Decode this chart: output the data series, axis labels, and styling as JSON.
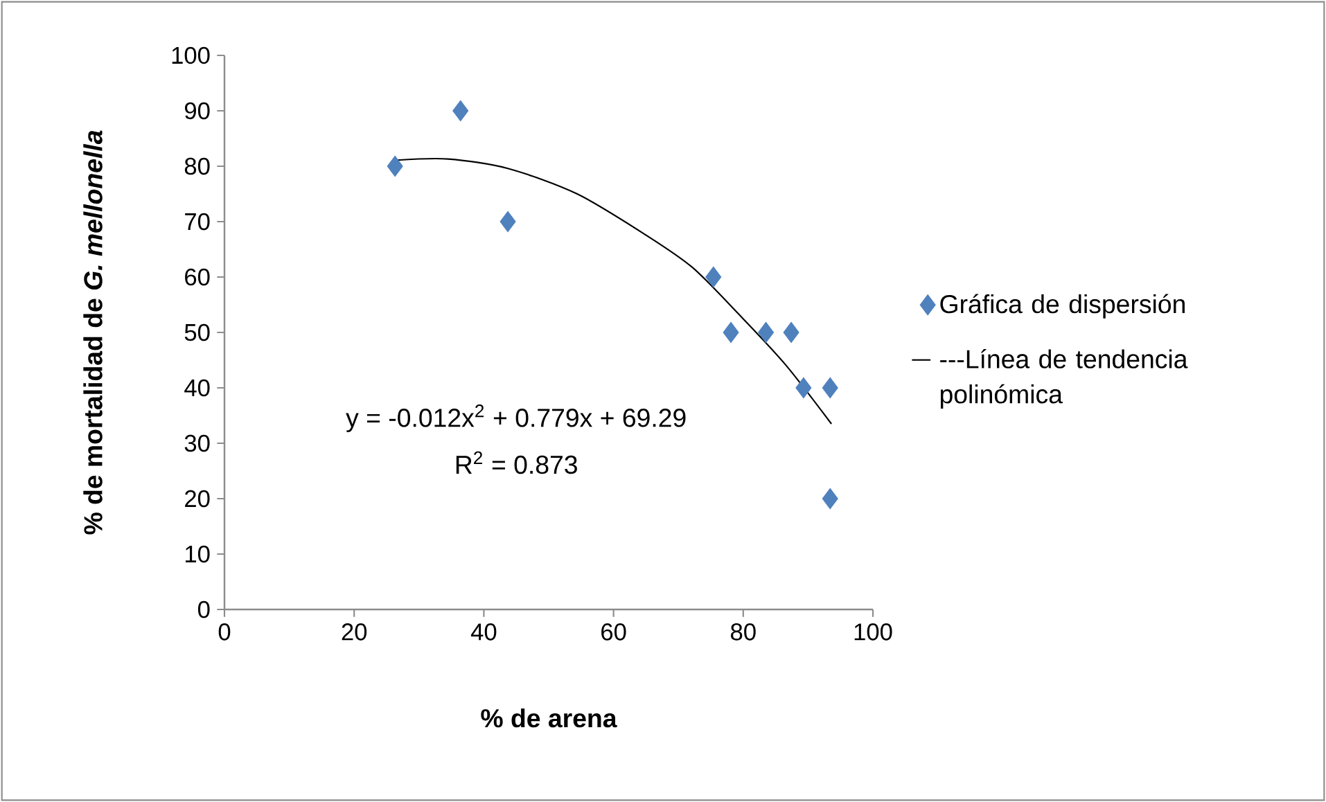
{
  "chart_data": {
    "type": "scatter",
    "xlabel": "% de arena",
    "ylabel": "% de mortalidad de *G. mellonella*",
    "xlim": [
      0,
      100
    ],
    "xticks": [
      0,
      20,
      40,
      60,
      80,
      100
    ],
    "ylim": [
      0,
      100
    ],
    "yticks": [
      0,
      10,
      20,
      30,
      40,
      50,
      60,
      70,
      80,
      90,
      100
    ],
    "grid": false,
    "legend": "right",
    "marker": "diamond",
    "series": [
      {
        "name": "Gráfica de dispersión",
        "color": "#4f81bd",
        "x": [
          26.3,
          36.4,
          43.7,
          75.4,
          78.1,
          83.5,
          87.4,
          89.3,
          93.4,
          93.4
        ],
        "values": [
          80,
          90,
          70,
          60,
          50,
          50,
          50,
          40,
          40,
          20
        ]
      },
      {
        "name": "---Línea de tendencia polinómica",
        "type": "line",
        "marker": "none",
        "color": "#000000",
        "x": [
          26.6,
          34.5,
          43.7,
          54.4,
          65.1,
          72.2,
          79.3,
          86.5,
          93.6
        ],
        "values": [
          81.1,
          81.3,
          79.6,
          75,
          67.5,
          61.7,
          53.3,
          44.2,
          33.5
        ]
      }
    ],
    "annotations": [
      "y = -0.012x$^{2}$ + 0.779x + 69.29",
      "R$^{2}$ = 0.873"
    ]
  }
}
